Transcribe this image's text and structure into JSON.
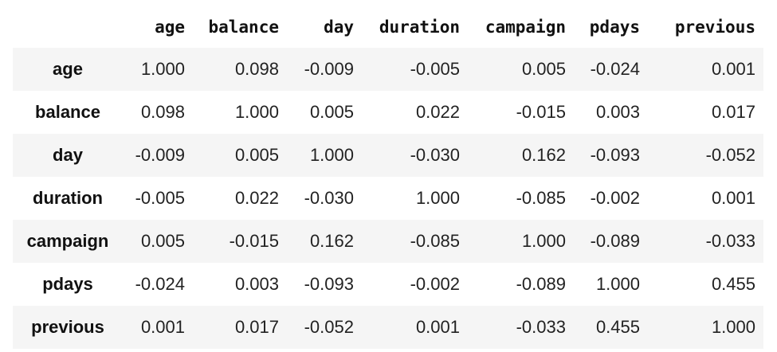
{
  "table": {
    "corner": "",
    "columns": [
      "age",
      "balance",
      "day",
      "duration",
      "campaign",
      "pdays",
      "previous"
    ],
    "rows": [
      {
        "label": "age",
        "values": [
          "1.000",
          "0.098",
          "-0.009",
          "-0.005",
          "0.005",
          "-0.024",
          "0.001"
        ]
      },
      {
        "label": "balance",
        "values": [
          "0.098",
          "1.000",
          "0.005",
          "0.022",
          "-0.015",
          "0.003",
          "0.017"
        ]
      },
      {
        "label": "day",
        "values": [
          "-0.009",
          "0.005",
          "1.000",
          "-0.030",
          "0.162",
          "-0.093",
          "-0.052"
        ]
      },
      {
        "label": "duration",
        "values": [
          "-0.005",
          "0.022",
          "-0.030",
          "1.000",
          "-0.085",
          "-0.002",
          "0.001"
        ]
      },
      {
        "label": "campaign",
        "values": [
          "0.005",
          "-0.015",
          "0.162",
          "-0.085",
          "1.000",
          "-0.089",
          "-0.033"
        ]
      },
      {
        "label": "pdays",
        "values": [
          "-0.024",
          "0.003",
          "-0.093",
          "-0.002",
          "-0.089",
          "1.000",
          "0.455"
        ]
      },
      {
        "label": "previous",
        "values": [
          "0.001",
          "0.017",
          "-0.052",
          "0.001",
          "-0.033",
          "0.455",
          "1.000"
        ]
      }
    ]
  },
  "colors": {
    "stripe": "#f5f5f5",
    "text": "#111111"
  }
}
